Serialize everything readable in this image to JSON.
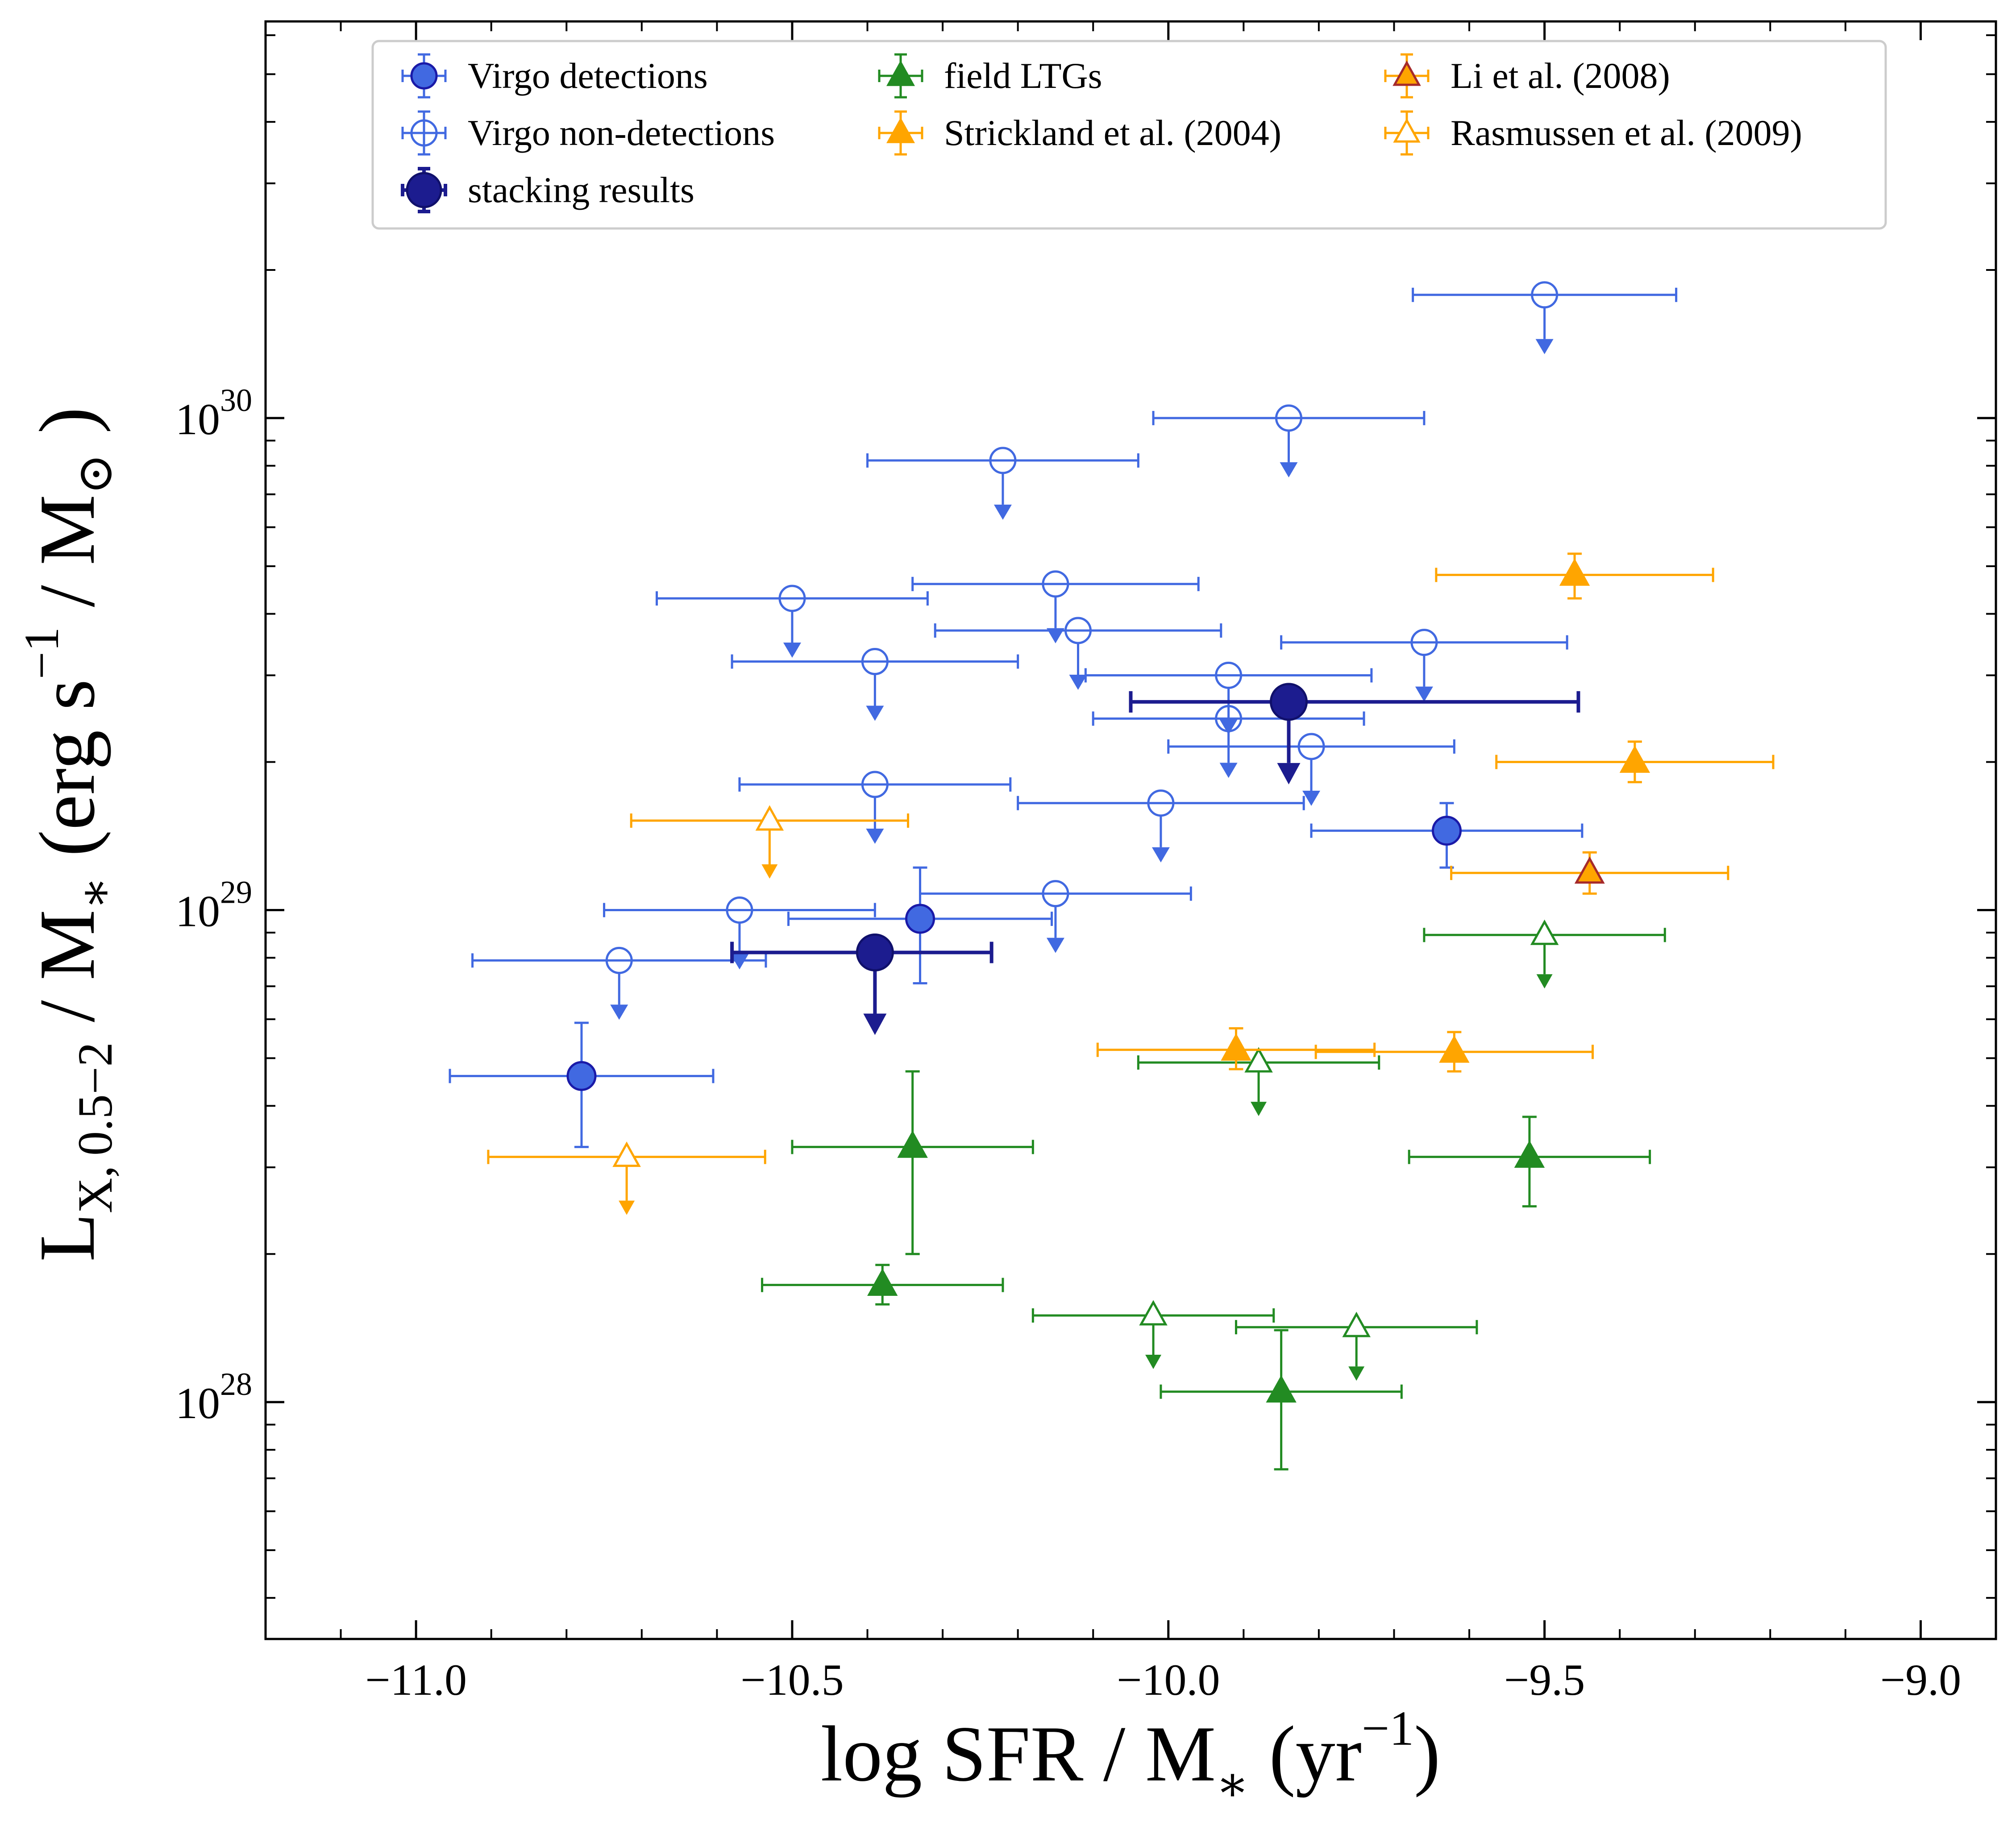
{
  "chart_data": {
    "type": "scatter",
    "title": "",
    "xlabel": {
      "prefix": "log SFR / M",
      "sub": "∗",
      "paren": "(yr",
      "sup": "−1",
      "close": ")"
    },
    "ylabel": {
      "base": "L",
      "sub": "X, 0.5−2",
      "mid": "/ M",
      "sub2": "∗",
      "paren": "(erg s",
      "sup": "−1",
      "tail": "/ M",
      "sub3": "⊙",
      "close": ")"
    },
    "x_scale": "linear",
    "y_scale": "log",
    "xlim": [
      -11.2,
      -8.9
    ],
    "ylim": [
      3.3e+27,
      6.4e+30
    ],
    "xticks": [
      {
        "value": -11.0,
        "label": "−11.0"
      },
      {
        "value": -10.5,
        "label": "−10.5"
      },
      {
        "value": -10.0,
        "label": "−10.0"
      },
      {
        "value": -9.5,
        "label": "−9.5"
      },
      {
        "value": -9.0,
        "label": "−9.0"
      }
    ],
    "yticks": [
      {
        "value": 1e+28,
        "base": "10",
        "exp": "28"
      },
      {
        "value": 1e+29,
        "base": "10",
        "exp": "29"
      },
      {
        "value": 1e+30,
        "base": "10",
        "exp": "30"
      }
    ],
    "legend_position": "top",
    "colors": {
      "virgo": "#4169E1",
      "virgo_edge": "#1a1aa8",
      "stack": "#1c1c8f",
      "stack_edge": "#10106b",
      "field": "#228B22",
      "orange": "#FFA500",
      "li": "#FFA500",
      "li_edge": "#a52a2a"
    },
    "series": [
      {
        "name": "Virgo detections",
        "key": "virgo_det",
        "legend_label": "Virgo detections",
        "points": [
          {
            "x": -10.78,
            "y": 4.6e+28,
            "xerr": 0.175,
            "yup": 5.9e+28,
            "ylo": 3.3e+28
          },
          {
            "x": -10.33,
            "y": 9.6e+28,
            "xerr": 0.175,
            "yup": 1.22e+29,
            "ylo": 7.1e+28
          },
          {
            "x": -9.63,
            "y": 1.45e+29,
            "xerr": 0.18,
            "yup": 1.65e+29,
            "ylo": 1.22e+29
          }
        ]
      },
      {
        "name": "Virgo non-detections",
        "key": "virgo_nondet",
        "legend_label": "Virgo non-detections",
        "points": [
          {
            "x": -10.73,
            "y": 7.9e+28,
            "xerr": 0.195
          },
          {
            "x": -10.57,
            "y": 1e+29,
            "xerr": 0.18
          },
          {
            "x": -10.39,
            "y": 1.8e+29,
            "xerr": 0.18
          },
          {
            "x": -10.39,
            "y": 3.2e+29,
            "xerr": 0.19
          },
          {
            "x": -10.5,
            "y": 4.3e+29,
            "xerr": 0.18
          },
          {
            "x": -10.22,
            "y": 8.2e+29,
            "xerr": 0.18
          },
          {
            "x": -10.15,
            "y": 4.6e+29,
            "xerr": 0.19
          },
          {
            "x": -10.12,
            "y": 3.7e+29,
            "xerr": 0.19
          },
          {
            "x": -10.15,
            "y": 1.08e+29,
            "xerr": 0.18
          },
          {
            "x": -10.01,
            "y": 1.65e+29,
            "xerr": 0.19
          },
          {
            "x": -9.92,
            "y": 3e+29,
            "xerr": 0.19
          },
          {
            "x": -9.92,
            "y": 2.45e+29,
            "xerr": 0.18
          },
          {
            "x": -9.84,
            "y": 1e+30,
            "xerr": 0.18
          },
          {
            "x": -9.81,
            "y": 2.15e+29,
            "xerr": 0.19
          },
          {
            "x": -9.66,
            "y": 3.5e+29,
            "xerr": 0.19
          },
          {
            "x": -9.5,
            "y": 1.78e+30,
            "xerr": 0.175
          }
        ]
      },
      {
        "name": "stacking results",
        "key": "stack",
        "legend_label": "stacking results",
        "points": [
          {
            "x": -10.39,
            "y": 8.2e+28,
            "xerr_lo": 0.19,
            "xerr_hi": 0.155
          },
          {
            "x": -9.84,
            "y": 2.65e+29,
            "xerr_lo": 0.21,
            "xerr_hi": 0.385
          }
        ]
      },
      {
        "name": "field LTGs",
        "key": "field",
        "legend_label": "field LTGs",
        "points": [
          {
            "x": -10.34,
            "y": 3.3e+28,
            "xerr": 0.16,
            "yup": 4.7e+28,
            "ylo": 2e+28,
            "limit": false
          },
          {
            "x": -10.38,
            "y": 1.73e+28,
            "xerr": 0.16,
            "yup": 1.9e+28,
            "ylo": 1.58e+28,
            "limit": false
          },
          {
            "x": -9.85,
            "y": 1.05e+28,
            "xerr": 0.16,
            "yup": 1.4e+28,
            "ylo": 7.3e+27,
            "limit": false
          },
          {
            "x": -9.52,
            "y": 3.15e+28,
            "xerr": 0.16,
            "yup": 3.8e+28,
            "ylo": 2.5e+28,
            "limit": false
          },
          {
            "x": -9.88,
            "y": 4.9e+28,
            "xerr": 0.16,
            "limit": true
          },
          {
            "x": -10.02,
            "y": 1.5e+28,
            "xerr": 0.16,
            "limit": true
          },
          {
            "x": -9.75,
            "y": 1.42e+28,
            "xerr": 0.16,
            "limit": true
          },
          {
            "x": -9.5,
            "y": 8.9e+28,
            "xerr": 0.16,
            "limit": true
          }
        ]
      },
      {
        "name": "Strickland et al. (2004)",
        "key": "strickland",
        "legend_label": "Strickland et al. (2004)",
        "points": [
          {
            "x": -9.46,
            "y": 4.8e+29,
            "xerr": 0.08,
            "yup": 5.3e+29,
            "ylo": 4.3e+29
          },
          {
            "x": -9.38,
            "y": 2e+29,
            "xerr": 0.08,
            "yup": 2.2e+29,
            "ylo": 1.82e+29
          },
          {
            "x": -9.91,
            "y": 5.2e+28,
            "xerr": 0.08,
            "yup": 5.75e+28,
            "ylo": 4.75e+28
          },
          {
            "x": -9.62,
            "y": 5.15e+28,
            "xerr": 0.08,
            "yup": 5.65e+28,
            "ylo": 4.7e+28
          }
        ]
      },
      {
        "name": "Li et al. (2008)",
        "key": "li",
        "legend_label": "Li et al. (2008)",
        "points": [
          {
            "x": -9.44,
            "y": 1.19e+29,
            "xerr": 0.08,
            "yup": 1.31e+29,
            "ylo": 1.08e+29
          }
        ]
      },
      {
        "name": "Rasmussen et al. (2009)",
        "key": "rasmussen",
        "legend_label": "Rasmussen et al. (2009)",
        "points": [
          {
            "x": -10.53,
            "y": 1.52e+29,
            "xerr": 0.08,
            "limit": true
          },
          {
            "x": -10.72,
            "y": 3.15e+28,
            "xerr": 0.08,
            "limit": true
          }
        ]
      }
    ]
  }
}
